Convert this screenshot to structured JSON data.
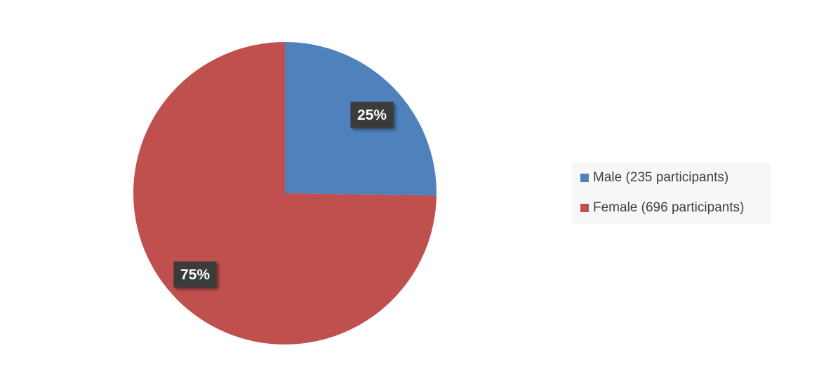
{
  "chart_data": {
    "type": "pie",
    "categories": [
      "Male (235 participants)",
      "Female (696 participants)"
    ],
    "values": [
      235,
      696
    ],
    "data_labels": [
      "25%",
      "75%"
    ],
    "colors": [
      "#4f81bd",
      "#c0504d"
    ],
    "legend_position": "right",
    "start_angle": "12 o'clock",
    "direction": "clockwise"
  }
}
